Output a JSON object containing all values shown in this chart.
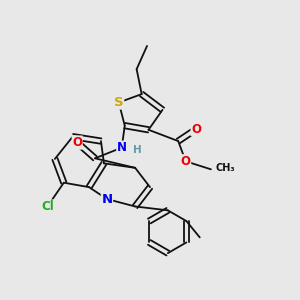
{
  "bg_color": "#e8e8e8",
  "atom_colors": {
    "S": "#ccaa00",
    "N": "#0000ee",
    "O": "#ee0000",
    "Cl": "#22aa22",
    "H": "#6699aa",
    "C": "#111111"
  },
  "font_size": 8.5
}
